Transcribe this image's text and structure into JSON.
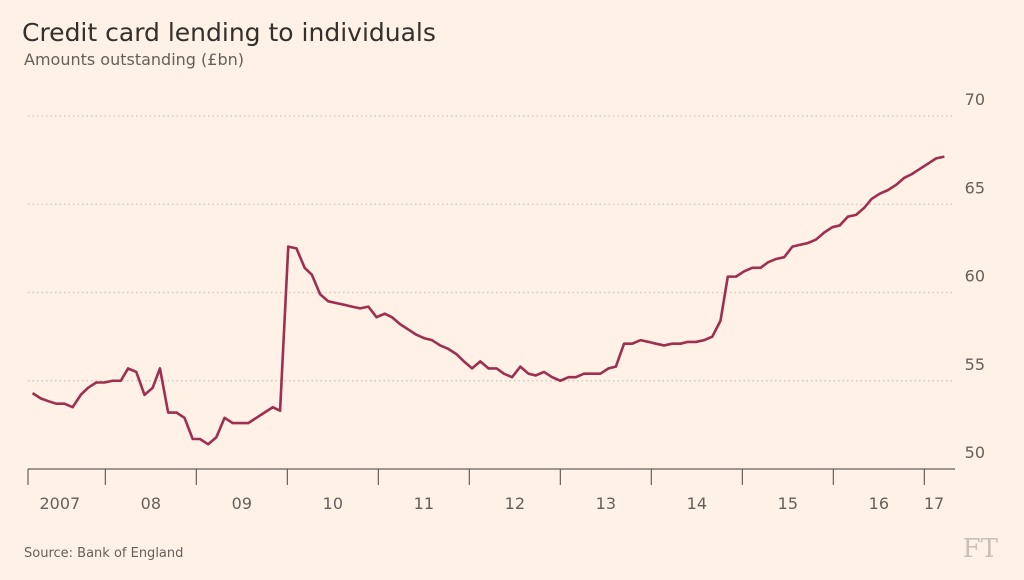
{
  "chart_data": {
    "type": "line",
    "title": "Credit card lending to individuals",
    "subtitle": "Amounts outstanding (£bn)",
    "source": "Source: Bank of England",
    "logo": "FT",
    "x": [
      2007.2,
      2007.29,
      2007.37,
      2007.46,
      2007.55,
      2007.64,
      2007.73,
      2007.81,
      2007.9,
      2007.99,
      2008.08,
      2008.17,
      2008.25,
      2008.34,
      2008.43,
      2008.52,
      2008.6,
      2008.69,
      2008.78,
      2008.87,
      2008.96,
      2009.04,
      2009.13,
      2009.22,
      2009.31,
      2009.4,
      2009.48,
      2009.57,
      2009.66,
      2009.75,
      2009.84,
      2009.92,
      2010.01,
      2010.1,
      2010.19,
      2010.27,
      2010.36,
      2010.45,
      2010.54,
      2010.63,
      2010.71,
      2010.8,
      2010.89,
      2010.98,
      2011.07,
      2011.15,
      2011.24,
      2011.33,
      2011.42,
      2011.51,
      2011.59,
      2011.68,
      2011.77,
      2011.86,
      2011.94,
      2012.03,
      2012.12,
      2012.21,
      2012.3,
      2012.38,
      2012.47,
      2012.56,
      2012.65,
      2012.73,
      2012.82,
      2012.91,
      2013.0,
      2013.09,
      2013.17,
      2013.26,
      2013.35,
      2013.44,
      2013.53,
      2013.61,
      2013.7,
      2013.79,
      2013.88,
      2013.97,
      2014.05,
      2014.14,
      2014.23,
      2014.32,
      2014.4,
      2014.49,
      2014.58,
      2014.67,
      2014.76,
      2014.84,
      2014.93,
      2015.02,
      2015.11,
      2015.2,
      2015.28,
      2015.37,
      2015.46,
      2015.55,
      2015.63,
      2015.72,
      2015.81,
      2015.9,
      2015.99,
      2016.07,
      2016.16,
      2016.25,
      2016.34,
      2016.42,
      2016.51,
      2016.6,
      2016.69,
      2016.78,
      2016.86,
      2016.95,
      2017.04,
      2017.13,
      2017.22
    ],
    "series": [
      {
        "name": "Credit card lending",
        "color": "#9e2f50",
        "values": [
          54.3,
          54.0,
          53.85,
          53.7,
          53.7,
          53.5,
          54.2,
          54.6,
          54.9,
          54.9,
          55.0,
          55.0,
          55.7,
          55.5,
          54.2,
          54.6,
          55.7,
          53.2,
          53.2,
          52.9,
          51.7,
          51.7,
          51.4,
          51.8,
          52.9,
          52.6,
          52.6,
          52.6,
          52.9,
          53.2,
          53.5,
          53.3,
          62.6,
          62.5,
          61.4,
          61.0,
          59.9,
          59.5,
          59.4,
          59.3,
          59.2,
          59.1,
          59.2,
          58.6,
          58.8,
          58.6,
          58.2,
          57.9,
          57.6,
          57.4,
          57.3,
          57.0,
          56.8,
          56.5,
          56.1,
          55.7,
          56.1,
          55.7,
          55.7,
          55.4,
          55.2,
          55.8,
          55.4,
          55.3,
          55.5,
          55.2,
          55.0,
          55.2,
          55.2,
          55.4,
          55.4,
          55.4,
          55.7,
          55.8,
          57.1,
          57.1,
          57.3,
          57.2,
          57.1,
          57.0,
          57.1,
          57.1,
          57.2,
          57.2,
          57.3,
          57.5,
          58.4,
          60.9,
          60.9,
          61.2,
          61.4,
          61.4,
          61.7,
          61.9,
          62.0,
          62.6,
          62.7,
          62.8,
          63.0,
          63.4,
          63.7,
          63.8,
          64.3,
          64.4,
          64.8,
          65.3,
          65.6,
          65.8,
          66.1,
          66.5,
          66.7,
          67.0,
          67.3,
          67.6,
          67.7
        ]
      }
    ],
    "xlim": [
      2007.15,
      2017.26
    ],
    "xticks": [
      {
        "value": 2007,
        "label": "2007"
      },
      {
        "value": 2008,
        "label": "08"
      },
      {
        "value": 2009,
        "label": "09"
      },
      {
        "value": 2010,
        "label": "10"
      },
      {
        "value": 2011,
        "label": "11"
      },
      {
        "value": 2012,
        "label": "12"
      },
      {
        "value": 2013,
        "label": "13"
      },
      {
        "value": 2014,
        "label": "14"
      },
      {
        "value": 2015,
        "label": "15"
      },
      {
        "value": 2016,
        "label": "16"
      },
      {
        "value": 2017,
        "label": "17"
      }
    ],
    "ylim": [
      50,
      70
    ],
    "yticks": [
      50,
      55,
      60,
      65,
      70
    ],
    "grid": true
  }
}
